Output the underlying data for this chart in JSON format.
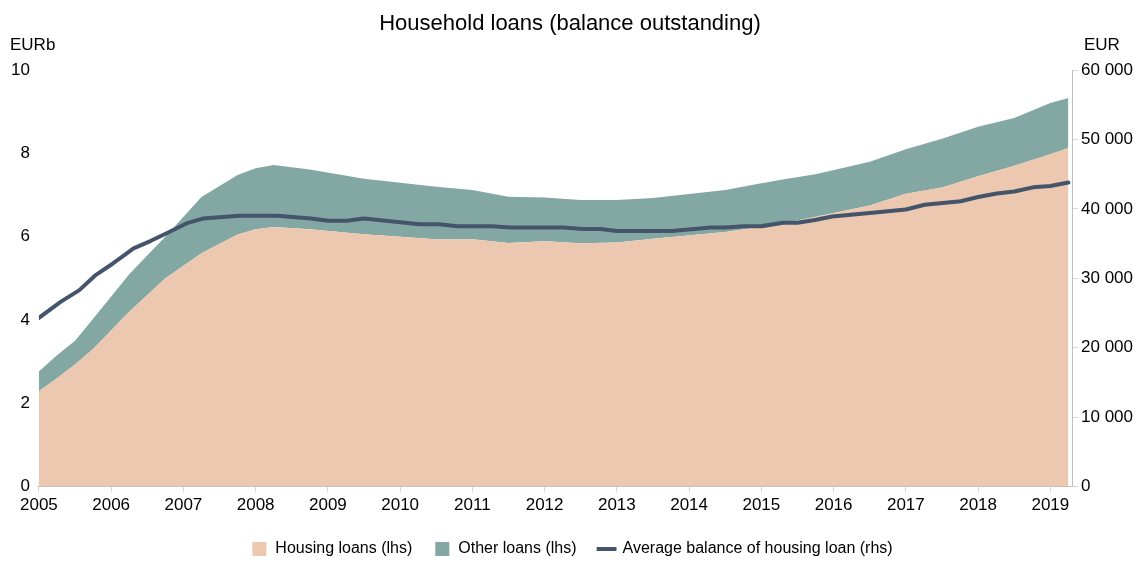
{
  "chart_data": {
    "type": "area",
    "title": "Household loans (balance outstanding)",
    "ylabel": "EURb",
    "y2label": "EUR",
    "stacked": true,
    "legend": "bottom",
    "grid": false,
    "x": [
      2005,
      2005.25,
      2005.5,
      2005.75,
      2006.25,
      2006.75,
      2007.25,
      2007.75,
      2008,
      2008.25,
      2008.75,
      2009.5,
      2010.5,
      2011,
      2011.5,
      2012,
      2012.5,
      2013,
      2013.5,
      2014.5,
      2015.25,
      2015.75,
      2016.5,
      2017,
      2017.5,
      2018,
      2018.5,
      2019,
      2019.25
    ],
    "xlim": [
      2005,
      2019.3
    ],
    "xticks": [
      2005,
      2006,
      2007,
      2008,
      2009,
      2010,
      2011,
      2012,
      2013,
      2014,
      2015,
      2016,
      2017,
      2018,
      2019
    ],
    "ylim": [
      0,
      10
    ],
    "yticks": [
      0,
      2,
      4,
      6,
      8,
      10
    ],
    "y2lim": [
      0,
      60000
    ],
    "y2ticks": [
      0,
      {
        "value": 10000,
        "label": "10 000"
      },
      {
        "value": 20000,
        "label": "20 000"
      },
      {
        "value": 30000,
        "label": "30 000"
      },
      {
        "value": 40000,
        "label": "40 000"
      },
      {
        "value": 50000,
        "label": "50 000"
      },
      {
        "value": 60000,
        "label": "60 000"
      }
    ],
    "series": [
      {
        "name": "Housing loans (lhs)",
        "color": "#ecc8b0",
        "values": [
          2.29,
          2.6,
          2.93,
          3.3,
          4.2,
          5.0,
          5.6,
          6.05,
          6.18,
          6.23,
          6.18,
          6.06,
          5.94,
          5.94,
          5.85,
          5.89,
          5.84,
          5.86,
          5.95,
          6.11,
          6.3,
          6.48,
          6.75,
          7.03,
          7.18,
          7.45,
          7.7,
          7.98,
          8.13
        ]
      },
      {
        "name": "Other loans (lhs)",
        "color": "#83a8a3",
        "values": [
          0.47,
          0.55,
          0.57,
          0.73,
          0.9,
          1.0,
          1.35,
          1.43,
          1.46,
          1.49,
          1.43,
          1.33,
          1.26,
          1.18,
          1.11,
          1.05,
          1.04,
          1.02,
          0.98,
          1.01,
          1.06,
          1.02,
          1.05,
          1.07,
          1.17,
          1.19,
          1.15,
          1.23,
          1.2
        ]
      },
      {
        "name": "Average balance of housing loan (rhs)",
        "type": "line",
        "axis": "y2",
        "color": "#44546a",
        "line_style": "solid",
        "x": [
          2005,
          2005.3,
          2005.56,
          2005.79,
          2006.02,
          2006.31,
          2006.55,
          2006.79,
          2007.04,
          2007.27,
          2007.77,
          2008.3,
          2008.77,
          2009,
          2009.26,
          2009.5,
          2010.27,
          2010.54,
          2010.79,
          2011.27,
          2011.54,
          2012.26,
          2012.53,
          2012.77,
          2013,
          2013.76,
          2014.3,
          2014.5,
          2014.76,
          2015,
          2015.3,
          2015.5,
          2015.74,
          2015.98,
          2016.5,
          2017,
          2017.26,
          2017.76,
          2018,
          2018.26,
          2018.5,
          2018.76,
          2019,
          2019.25
        ],
        "values": [
          24300,
          26600,
          28300,
          30500,
          32100,
          34300,
          35400,
          36600,
          37900,
          38600,
          39000,
          39000,
          38600,
          38300,
          38300,
          38600,
          37800,
          37800,
          37500,
          37500,
          37300,
          37300,
          37100,
          37100,
          36800,
          36800,
          37300,
          37300,
          37500,
          37500,
          38000,
          38000,
          38400,
          38900,
          39400,
          39900,
          40600,
          41100,
          41700,
          42200,
          42500,
          43100,
          43300,
          43800
        ]
      }
    ]
  }
}
